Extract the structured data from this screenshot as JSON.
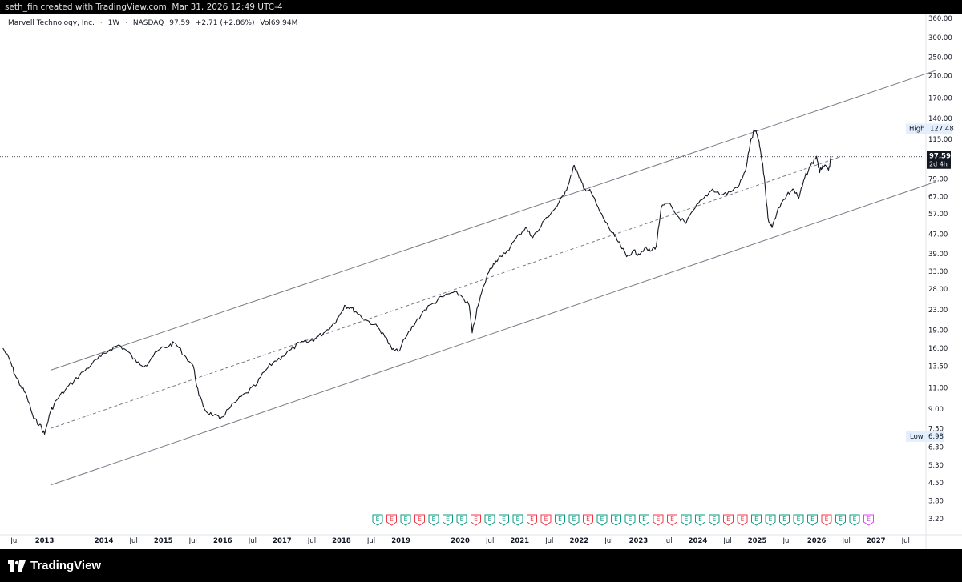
{
  "header": {
    "caption": "seth_fin created with TradingView.com, Mar 31, 2026 12:49 UTC-4"
  },
  "legend": {
    "symbol": "Marvell Technology, Inc.",
    "interval": "1W",
    "exchange": "NASDAQ",
    "last": "97.59",
    "change": "+2.71 (+2.86%)",
    "volume": "Vol69.94M"
  },
  "footer": {
    "brand": "TradingView"
  },
  "chart_data": {
    "type": "line",
    "scale": "log",
    "y_ticks": [
      3.2,
      3.8,
      4.5,
      5.3,
      6.3,
      7.5,
      9,
      11,
      13.5,
      16,
      19,
      23,
      28,
      33,
      39,
      47,
      57,
      67,
      79,
      97.59,
      115,
      140,
      170,
      210,
      250,
      300,
      360
    ],
    "y_tick_labels": [
      "3.20",
      "3.80",
      "4.50",
      "5.30",
      "6.30",
      "7.50",
      "9.00",
      "11.00",
      "13.50",
      "16.00",
      "19.00",
      "23.00",
      "28.00",
      "33.00",
      "39.00",
      "47.00",
      "57.00",
      "67.00",
      "79.00",
      "97.59",
      "115.00",
      "140.00",
      "170.00",
      "210.00",
      "250.00",
      "300.00",
      "360.00"
    ],
    "x_ticks": [
      {
        "label": "Jul",
        "x": 2012.5
      },
      {
        "label": "2013",
        "x": 2013.0
      },
      {
        "label": "2014",
        "x": 2014.0
      },
      {
        "label": "Jul",
        "x": 2014.5
      },
      {
        "label": "2015",
        "x": 2015.0
      },
      {
        "label": "Jul",
        "x": 2015.5
      },
      {
        "label": "2016",
        "x": 2016.0
      },
      {
        "label": "Jul",
        "x": 2016.5
      },
      {
        "label": "2017",
        "x": 2017.0
      },
      {
        "label": "Jul",
        "x": 2017.5
      },
      {
        "label": "2018",
        "x": 2018.0
      },
      {
        "label": "Jul",
        "x": 2018.5
      },
      {
        "label": "2019",
        "x": 2019.0
      },
      {
        "label": "2020",
        "x": 2020.0
      },
      {
        "label": "Jul",
        "x": 2020.5
      },
      {
        "label": "2021",
        "x": 2021.0
      },
      {
        "label": "Jul",
        "x": 2021.5
      },
      {
        "label": "2022",
        "x": 2022.0
      },
      {
        "label": "Jul",
        "x": 2022.5
      },
      {
        "label": "2023",
        "x": 2023.0
      },
      {
        "label": "Jul",
        "x": 2023.5
      },
      {
        "label": "2024",
        "x": 2024.0
      },
      {
        "label": "Jul",
        "x": 2024.5
      },
      {
        "label": "2025",
        "x": 2025.0
      },
      {
        "label": "Jul",
        "x": 2025.5
      },
      {
        "label": "2026",
        "x": 2026.0
      },
      {
        "label": "Jul",
        "x": 2026.5
      },
      {
        "label": "2027",
        "x": 2027.0
      },
      {
        "label": "Jul",
        "x": 2027.5
      }
    ],
    "price_series": [
      [
        2012.3,
        16.0
      ],
      [
        2012.42,
        14.2
      ],
      [
        2012.5,
        12.5
      ],
      [
        2012.6,
        11.2
      ],
      [
        2012.7,
        10.2
      ],
      [
        2012.82,
        8.2
      ],
      [
        2012.92,
        7.8
      ],
      [
        2013.0,
        7.1
      ],
      [
        2013.1,
        8.8
      ],
      [
        2013.2,
        9.8
      ],
      [
        2013.35,
        10.8
      ],
      [
        2013.5,
        11.8
      ],
      [
        2013.65,
        12.8
      ],
      [
        2013.8,
        13.8
      ],
      [
        2013.95,
        14.8
      ],
      [
        2014.1,
        15.8
      ],
      [
        2014.25,
        16.5
      ],
      [
        2014.4,
        15.5
      ],
      [
        2014.55,
        14.0
      ],
      [
        2014.7,
        13.6
      ],
      [
        2014.8,
        14.6
      ],
      [
        2014.95,
        15.9
      ],
      [
        2015.1,
        16.4
      ],
      [
        2015.2,
        16.8
      ],
      [
        2015.35,
        15.0
      ],
      [
        2015.5,
        13.6
      ],
      [
        2015.6,
        10.2
      ],
      [
        2015.72,
        8.8
      ],
      [
        2015.85,
        8.5
      ],
      [
        2015.95,
        8.2
      ],
      [
        2016.1,
        9.0
      ],
      [
        2016.25,
        9.8
      ],
      [
        2016.4,
        10.5
      ],
      [
        2016.55,
        11.2
      ],
      [
        2016.7,
        12.8
      ],
      [
        2016.85,
        14.0
      ],
      [
        2017.0,
        14.8
      ],
      [
        2017.15,
        15.8
      ],
      [
        2017.3,
        16.8
      ],
      [
        2017.45,
        17.0
      ],
      [
        2017.55,
        17.5
      ],
      [
        2017.7,
        18.5
      ],
      [
        2017.85,
        20.0
      ],
      [
        2017.95,
        21.5
      ],
      [
        2018.05,
        24.0
      ],
      [
        2018.15,
        23.5
      ],
      [
        2018.25,
        22.5
      ],
      [
        2018.4,
        21.0
      ],
      [
        2018.55,
        20.0
      ],
      [
        2018.7,
        18.5
      ],
      [
        2018.85,
        15.8
      ],
      [
        2018.95,
        15.5
      ],
      [
        2019.1,
        18.0
      ],
      [
        2019.25,
        20.5
      ],
      [
        2019.4,
        23.0
      ],
      [
        2019.55,
        24.5
      ],
      [
        2019.7,
        26.0
      ],
      [
        2019.85,
        27.0
      ],
      [
        2020.0,
        26.5
      ],
      [
        2020.15,
        24.0
      ],
      [
        2020.2,
        18.5
      ],
      [
        2020.3,
        24.0
      ],
      [
        2020.4,
        29.0
      ],
      [
        2020.5,
        34.0
      ],
      [
        2020.6,
        36.5
      ],
      [
        2020.7,
        38.0
      ],
      [
        2020.85,
        42.0
      ],
      [
        2021.0,
        47.0
      ],
      [
        2021.1,
        50.0
      ],
      [
        2021.2,
        46.0
      ],
      [
        2021.3,
        48.0
      ],
      [
        2021.45,
        55.0
      ],
      [
        2021.6,
        60.0
      ],
      [
        2021.75,
        68.0
      ],
      [
        2021.85,
        80.0
      ],
      [
        2021.92,
        90.0
      ],
      [
        2022.0,
        80.0
      ],
      [
        2022.1,
        72.0
      ],
      [
        2022.2,
        70.0
      ],
      [
        2022.35,
        58.0
      ],
      [
        2022.5,
        50.0
      ],
      [
        2022.6,
        46.0
      ],
      [
        2022.7,
        42.0
      ],
      [
        2022.8,
        38.0
      ],
      [
        2022.9,
        40.0
      ],
      [
        2023.0,
        39.0
      ],
      [
        2023.1,
        41.0
      ],
      [
        2023.2,
        40.0
      ],
      [
        2023.3,
        42.0
      ],
      [
        2023.38,
        60.0
      ],
      [
        2023.5,
        63.0
      ],
      [
        2023.65,
        56.0
      ],
      [
        2023.8,
        52.0
      ],
      [
        2023.95,
        60.0
      ],
      [
        2024.1,
        66.0
      ],
      [
        2024.25,
        72.0
      ],
      [
        2024.4,
        68.0
      ],
      [
        2024.55,
        70.0
      ],
      [
        2024.7,
        75.0
      ],
      [
        2024.8,
        85.0
      ],
      [
        2024.88,
        110.0
      ],
      [
        2024.95,
        125.0
      ],
      [
        2025.0,
        120.0
      ],
      [
        2025.05,
        105.0
      ],
      [
        2025.12,
        80.0
      ],
      [
        2025.18,
        55.0
      ],
      [
        2025.25,
        50.0
      ],
      [
        2025.35,
        60.0
      ],
      [
        2025.5,
        68.0
      ],
      [
        2025.6,
        72.0
      ],
      [
        2025.7,
        66.0
      ],
      [
        2025.8,
        80.0
      ],
      [
        2025.9,
        90.0
      ],
      [
        2026.0,
        98.0
      ],
      [
        2026.05,
        84.0
      ],
      [
        2026.1,
        90.0
      ],
      [
        2026.2,
        86.0
      ],
      [
        2026.25,
        97.59
      ]
    ],
    "channel_upper": [
      [
        2013.1,
        13.0
      ],
      [
        2028.0,
        220.0
      ]
    ],
    "channel_lower": [
      [
        2013.1,
        4.4
      ],
      [
        2028.0,
        77.0
      ]
    ],
    "channel_mid": [
      [
        2013.1,
        7.5
      ],
      [
        2026.4,
        97.59
      ]
    ],
    "last_price": 97.59,
    "last_price_label": "97.59",
    "countdown": "2d 4h",
    "high": {
      "label": "High",
      "value": 127.48,
      "value_label": "127.48"
    },
    "low": {
      "label": "Low",
      "value": 6.98,
      "value_label": "6.98"
    },
    "earnings_markers": [
      {
        "label": "E",
        "type": "beat"
      },
      {
        "label": "E",
        "type": "miss"
      },
      {
        "label": "E",
        "type": "beat"
      },
      {
        "label": "E",
        "type": "miss"
      },
      {
        "label": "E",
        "type": "beat"
      },
      {
        "label": "E",
        "type": "beat"
      },
      {
        "label": "E",
        "type": "beat"
      },
      {
        "label": "E",
        "type": "miss"
      },
      {
        "label": "E",
        "type": "beat"
      },
      {
        "label": "E",
        "type": "beat"
      },
      {
        "label": "E",
        "type": "beat"
      },
      {
        "label": "E",
        "type": "miss"
      },
      {
        "label": "E",
        "type": "miss"
      },
      {
        "label": "E",
        "type": "beat"
      },
      {
        "label": "E",
        "type": "beat"
      },
      {
        "label": "E",
        "type": "miss"
      },
      {
        "label": "E",
        "type": "beat"
      },
      {
        "label": "E",
        "type": "beat"
      },
      {
        "label": "E",
        "type": "beat"
      },
      {
        "label": "E",
        "type": "beat"
      },
      {
        "label": "E",
        "type": "miss"
      },
      {
        "label": "E",
        "type": "miss"
      },
      {
        "label": "E",
        "type": "beat"
      },
      {
        "label": "E",
        "type": "beat"
      },
      {
        "label": "E",
        "type": "beat"
      },
      {
        "label": "E",
        "type": "miss"
      },
      {
        "label": "E",
        "type": "miss"
      },
      {
        "label": "E",
        "type": "beat"
      },
      {
        "label": "E",
        "type": "beat"
      },
      {
        "label": "E",
        "type": "beat"
      },
      {
        "label": "E",
        "type": "beat"
      },
      {
        "label": "E",
        "type": "beat"
      },
      {
        "label": "E",
        "type": "miss"
      },
      {
        "label": "E",
        "type": "beat"
      },
      {
        "label": "E",
        "type": "beat"
      },
      {
        "label": "E",
        "type": "upcoming"
      }
    ],
    "colors": {
      "beat": "#089981",
      "miss": "#f23645",
      "upcoming": "#e040fb",
      "line": "#131722",
      "channel": "#787b86"
    }
  }
}
